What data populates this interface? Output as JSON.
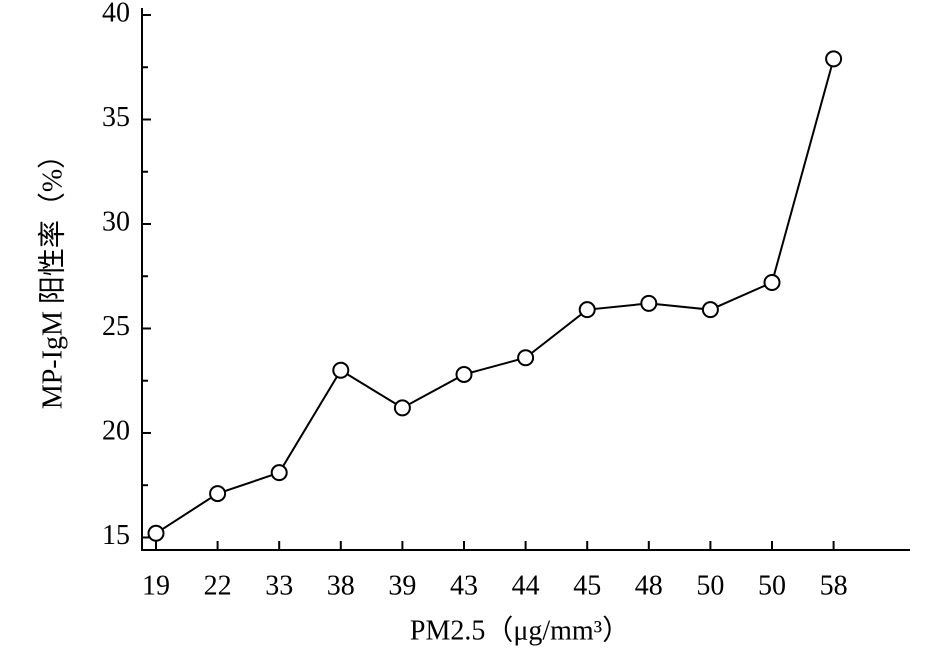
{
  "chart_data": {
    "type": "line",
    "x_label": "PM2.5（μg/mm³）",
    "y_label": "MP-IgM 阳性率（%）",
    "categories": [
      "19",
      "22",
      "33",
      "38",
      "39",
      "43",
      "44",
      "45",
      "48",
      "50",
      "50",
      "58"
    ],
    "series": [
      {
        "name": "MP-IgM",
        "color": "#000000",
        "values": [
          15.2,
          17.1,
          18.1,
          23.0,
          21.2,
          22.8,
          23.6,
          25.9,
          26.2,
          25.9,
          27.2,
          37.9
        ]
      }
    ],
    "ylim": [
      14.4,
      40
    ],
    "yticks": [
      15,
      20,
      25,
      30,
      35,
      40
    ],
    "yminorticks": [
      17.5,
      22.5,
      27.5,
      32.5,
      37.5
    ],
    "grid": false
  }
}
